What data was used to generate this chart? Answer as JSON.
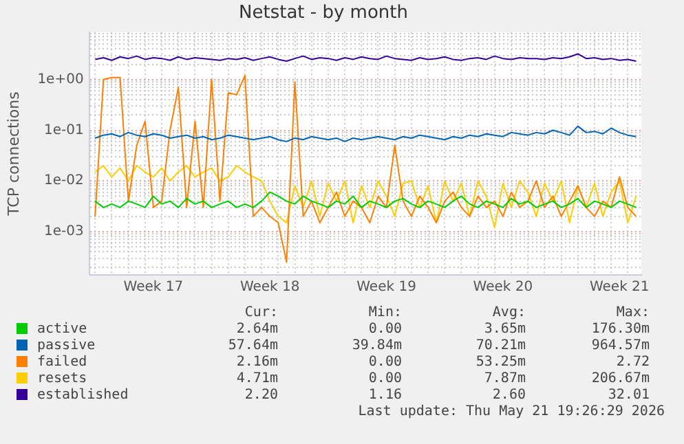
{
  "chart_data": {
    "type": "line",
    "title": "Netstat - by month",
    "ylabel": "TCP connections",
    "log": "y",
    "grid": true,
    "legend": "bottom",
    "marker": "none",
    "line_style": "solid",
    "xlim": [
      "2026-04-18T15:30",
      "2026-05-21T19:30"
    ],
    "ylim": [
      0.00014,
      8.5
    ],
    "xticks": [
      {
        "value": "2026-04-19T00:00",
        "label": null
      },
      {
        "value": "2026-04-20T00:00",
        "label": null
      },
      {
        "value": "2026-04-21T00:00",
        "label": null
      },
      {
        "value": "2026-04-22T00:00",
        "label": null
      },
      {
        "value": "2026-04-22T12:00",
        "label": "Week 17"
      },
      {
        "value": "2026-04-23T00:00",
        "label": null
      },
      {
        "value": "2026-04-24T00:00",
        "label": null
      },
      {
        "value": "2026-04-25T00:00",
        "label": null
      },
      {
        "value": "2026-04-26T00:00",
        "label": null
      },
      {
        "value": "2026-04-27T00:00",
        "label": null
      },
      {
        "value": "2026-04-28T00:00",
        "label": null
      },
      {
        "value": "2026-04-29T00:00",
        "label": null
      },
      {
        "value": "2026-04-29T12:00",
        "label": "Week 18"
      },
      {
        "value": "2026-04-30T00:00",
        "label": null
      },
      {
        "value": "2026-05-01T00:00",
        "label": null
      },
      {
        "value": "2026-05-02T00:00",
        "label": null
      },
      {
        "value": "2026-05-03T00:00",
        "label": null
      },
      {
        "value": "2026-05-04T00:00",
        "label": null
      },
      {
        "value": "2026-05-05T00:00",
        "label": null
      },
      {
        "value": "2026-05-06T00:00",
        "label": null
      },
      {
        "value": "2026-05-06T12:00",
        "label": "Week 19"
      },
      {
        "value": "2026-05-07T00:00",
        "label": null
      },
      {
        "value": "2026-05-08T00:00",
        "label": null
      },
      {
        "value": "2026-05-09T00:00",
        "label": null
      },
      {
        "value": "2026-05-10T00:00",
        "label": null
      },
      {
        "value": "2026-05-11T00:00",
        "label": null
      },
      {
        "value": "2026-05-12T00:00",
        "label": null
      },
      {
        "value": "2026-05-13T00:00",
        "label": null
      },
      {
        "value": "2026-05-13T12:00",
        "label": "Week 20"
      },
      {
        "value": "2026-05-14T00:00",
        "label": null
      },
      {
        "value": "2026-05-15T00:00",
        "label": null
      },
      {
        "value": "2026-05-16T00:00",
        "label": null
      },
      {
        "value": "2026-05-17T00:00",
        "label": null
      },
      {
        "value": "2026-05-18T00:00",
        "label": null
      },
      {
        "value": "2026-05-19T00:00",
        "label": null
      },
      {
        "value": "2026-05-20T00:00",
        "label": null
      },
      {
        "value": "2026-05-20T12:00",
        "label": "Week 21"
      },
      {
        "value": "2026-05-21T00:00",
        "label": null
      }
    ],
    "yticks": [
      {
        "value": 0.0002,
        "label": null
      },
      {
        "value": 0.0003,
        "label": null
      },
      {
        "value": 0.0004,
        "label": null
      },
      {
        "value": 0.0005,
        "label": null
      },
      {
        "value": 0.0006,
        "label": null
      },
      {
        "value": 0.0007,
        "label": null
      },
      {
        "value": 0.0008,
        "label": null
      },
      {
        "value": 0.0009,
        "label": null
      },
      {
        "value": 0.001,
        "label": "1e-03"
      },
      {
        "value": 0.002,
        "label": null
      },
      {
        "value": 0.003,
        "label": null
      },
      {
        "value": 0.004,
        "label": null
      },
      {
        "value": 0.005,
        "label": null
      },
      {
        "value": 0.006,
        "label": null
      },
      {
        "value": 0.007,
        "label": null
      },
      {
        "value": 0.008,
        "label": null
      },
      {
        "value": 0.009,
        "label": null
      },
      {
        "value": 0.01,
        "label": "1e-02"
      },
      {
        "value": 0.02,
        "label": null
      },
      {
        "value": 0.03,
        "label": null
      },
      {
        "value": 0.04,
        "label": null
      },
      {
        "value": 0.05,
        "label": null
      },
      {
        "value": 0.06,
        "label": null
      },
      {
        "value": 0.07,
        "label": null
      },
      {
        "value": 0.08,
        "label": null
      },
      {
        "value": 0.09,
        "label": null
      },
      {
        "value": 0.1,
        "label": "1e-01"
      },
      {
        "value": 0.2,
        "label": null
      },
      {
        "value": 0.3,
        "label": null
      },
      {
        "value": 0.4,
        "label": null
      },
      {
        "value": 0.5,
        "label": null
      },
      {
        "value": 0.6,
        "label": null
      },
      {
        "value": 0.7,
        "label": null
      },
      {
        "value": 0.8,
        "label": null
      },
      {
        "value": 0.9,
        "label": null
      },
      {
        "value": 1,
        "label": "1e+00"
      },
      {
        "value": 2,
        "label": null
      },
      {
        "value": 3,
        "label": null
      },
      {
        "value": 4,
        "label": null
      },
      {
        "value": 5,
        "label": null
      },
      {
        "value": 6,
        "label": null
      },
      {
        "value": 7,
        "label": null
      },
      {
        "value": 8,
        "label": null
      }
    ],
    "x": [
      "2026-04-19T00:00",
      "2026-04-19T12:00",
      "2026-04-20T00:00",
      "2026-04-20T12:00",
      "2026-04-21T00:00",
      "2026-04-21T12:00",
      "2026-04-22T00:00",
      "2026-04-22T12:00",
      "2026-04-23T00:00",
      "2026-04-23T12:00",
      "2026-04-24T00:00",
      "2026-04-24T12:00",
      "2026-04-25T00:00",
      "2026-04-25T12:00",
      "2026-04-26T00:00",
      "2026-04-26T12:00",
      "2026-04-27T00:00",
      "2026-04-27T12:00",
      "2026-04-28T00:00",
      "2026-04-28T12:00",
      "2026-04-29T00:00",
      "2026-04-29T12:00",
      "2026-04-30T00:00",
      "2026-04-30T12:00",
      "2026-05-01T00:00",
      "2026-05-01T12:00",
      "2026-05-02T00:00",
      "2026-05-02T12:00",
      "2026-05-03T00:00",
      "2026-05-03T12:00",
      "2026-05-04T00:00",
      "2026-05-04T12:00",
      "2026-05-05T00:00",
      "2026-05-05T12:00",
      "2026-05-06T00:00",
      "2026-05-06T12:00",
      "2026-05-07T00:00",
      "2026-05-07T12:00",
      "2026-05-08T00:00",
      "2026-05-08T12:00",
      "2026-05-09T00:00",
      "2026-05-09T12:00",
      "2026-05-10T00:00",
      "2026-05-10T12:00",
      "2026-05-11T00:00",
      "2026-05-11T12:00",
      "2026-05-12T00:00",
      "2026-05-12T12:00",
      "2026-05-13T00:00",
      "2026-05-13T12:00",
      "2026-05-14T00:00",
      "2026-05-14T12:00",
      "2026-05-15T00:00",
      "2026-05-15T12:00",
      "2026-05-16T00:00",
      "2026-05-16T12:00",
      "2026-05-17T00:00",
      "2026-05-17T12:00",
      "2026-05-18T00:00",
      "2026-05-18T12:00",
      "2026-05-19T00:00",
      "2026-05-19T12:00",
      "2026-05-20T00:00",
      "2026-05-20T12:00",
      "2026-05-21T00:00",
      "2026-05-21T12:00"
    ],
    "series": [
      {
        "name": "active",
        "color": "#00cc00",
        "values": [
          0.004,
          0.003,
          0.0035,
          0.003,
          0.004,
          0.0035,
          0.003,
          0.005,
          0.0035,
          0.004,
          0.003,
          0.0045,
          0.0035,
          0.004,
          0.003,
          0.0035,
          0.004,
          0.003,
          0.0035,
          0.003,
          0.004,
          0.006,
          0.005,
          0.004,
          0.0035,
          0.005,
          0.004,
          0.0035,
          0.003,
          0.004,
          0.0035,
          0.005,
          0.003,
          0.004,
          0.0035,
          0.003,
          0.004,
          0.0045,
          0.0035,
          0.003,
          0.004,
          0.0035,
          0.003,
          0.004,
          0.005,
          0.0035,
          0.003,
          0.004,
          0.0035,
          0.003,
          0.0045,
          0.0035,
          0.004,
          0.003,
          0.0035,
          0.004,
          0.003,
          0.0035,
          0.0045,
          0.003,
          0.004,
          0.0035,
          0.003,
          0.004,
          0.0035,
          0.003
        ]
      },
      {
        "name": "passive",
        "color": "#0066b3",
        "values": [
          0.07,
          0.08,
          0.085,
          0.075,
          0.09,
          0.08,
          0.075,
          0.085,
          0.08,
          0.07,
          0.075,
          0.08,
          0.07,
          0.075,
          0.065,
          0.07,
          0.08,
          0.075,
          0.07,
          0.065,
          0.07,
          0.075,
          0.065,
          0.06,
          0.07,
          0.065,
          0.075,
          0.07,
          0.065,
          0.07,
          0.06,
          0.07,
          0.065,
          0.07,
          0.075,
          0.07,
          0.065,
          0.075,
          0.07,
          0.08,
          0.075,
          0.07,
          0.065,
          0.075,
          0.07,
          0.08,
          0.075,
          0.085,
          0.08,
          0.075,
          0.09,
          0.085,
          0.08,
          0.09,
          0.085,
          0.1,
          0.09,
          0.08,
          0.12,
          0.09,
          0.095,
          0.085,
          0.11,
          0.09,
          0.08,
          0.075
        ]
      },
      {
        "name": "failed",
        "color": "#ff8000",
        "values": [
          0.002,
          1.0,
          1.1,
          1.1,
          0.004,
          0.05,
          0.15,
          0.003,
          0.004,
          0.1,
          0.7,
          0.003,
          0.15,
          0.003,
          1.0,
          0.004,
          0.55,
          0.5,
          1.2,
          0.002,
          0.003,
          0.002,
          0.0015,
          0.00025,
          0.9,
          0.002,
          0.004,
          0.0015,
          0.003,
          0.006,
          0.002,
          0.004,
          0.003,
          0.0015,
          0.005,
          0.003,
          0.05,
          0.004,
          0.002,
          0.005,
          0.003,
          0.0015,
          0.004,
          0.006,
          0.003,
          0.002,
          0.005,
          0.003,
          0.004,
          0.002,
          0.006,
          0.003,
          0.004,
          0.01,
          0.003,
          0.005,
          0.002,
          0.004,
          0.008,
          0.003,
          0.002,
          0.004,
          0.003,
          0.012,
          0.003,
          0.002
        ]
      },
      {
        "name": "resets",
        "color": "#ffcc00",
        "values": [
          0.015,
          0.02,
          0.012,
          0.018,
          0.01,
          0.02,
          0.015,
          0.012,
          0.018,
          0.01,
          0.015,
          0.02,
          0.012,
          0.015,
          0.018,
          0.01,
          0.012,
          0.02,
          0.015,
          0.012,
          0.01,
          0.004,
          0.002,
          0.0015,
          0.008,
          0.003,
          0.01,
          0.002,
          0.009,
          0.004,
          0.01,
          0.0015,
          0.008,
          0.003,
          0.01,
          0.005,
          0.002,
          0.009,
          0.01,
          0.003,
          0.008,
          0.0015,
          0.01,
          0.004,
          0.009,
          0.002,
          0.01,
          0.005,
          0.0012,
          0.009,
          0.003,
          0.01,
          0.006,
          0.002,
          0.009,
          0.004,
          0.01,
          0.0015,
          0.008,
          0.003,
          0.009,
          0.002,
          0.006,
          0.01,
          0.0015,
          0.005
        ]
      },
      {
        "name": "established",
        "color": "#330099",
        "values": [
          2.5,
          2.7,
          2.4,
          2.8,
          2.6,
          2.9,
          2.5,
          2.7,
          2.6,
          2.4,
          2.8,
          2.5,
          2.7,
          2.6,
          2.5,
          2.4,
          2.6,
          2.5,
          2.7,
          2.4,
          2.6,
          2.8,
          2.5,
          2.3,
          2.6,
          2.9,
          2.5,
          2.7,
          2.6,
          2.4,
          2.7,
          2.5,
          2.8,
          2.6,
          2.5,
          2.9,
          2.6,
          2.5,
          2.4,
          2.7,
          2.5,
          2.6,
          2.8,
          2.5,
          2.4,
          2.6,
          2.7,
          2.5,
          2.9,
          2.6,
          2.5,
          2.7,
          2.6,
          2.6,
          2.5,
          2.7,
          2.6,
          2.8,
          3.2,
          2.6,
          2.7,
          2.5,
          2.6,
          2.4,
          2.5,
          2.3
        ]
      }
    ],
    "annotations": [
      "Cur:",
      "Min:",
      "Avg:",
      "Max:",
      "2.64m",
      "0.00",
      "3.65m",
      "176.30m",
      "57.64m",
      "39.84m",
      "70.21m",
      "964.57m",
      "2.16m",
      "0.00",
      "53.25m",
      "2.72",
      "4.71m",
      "0.00",
      "7.87m",
      "206.67m",
      "2.20",
      "1.16",
      "2.60",
      "32.01",
      "Last update: Thu May 21 19:26:29 2026"
    ]
  }
}
